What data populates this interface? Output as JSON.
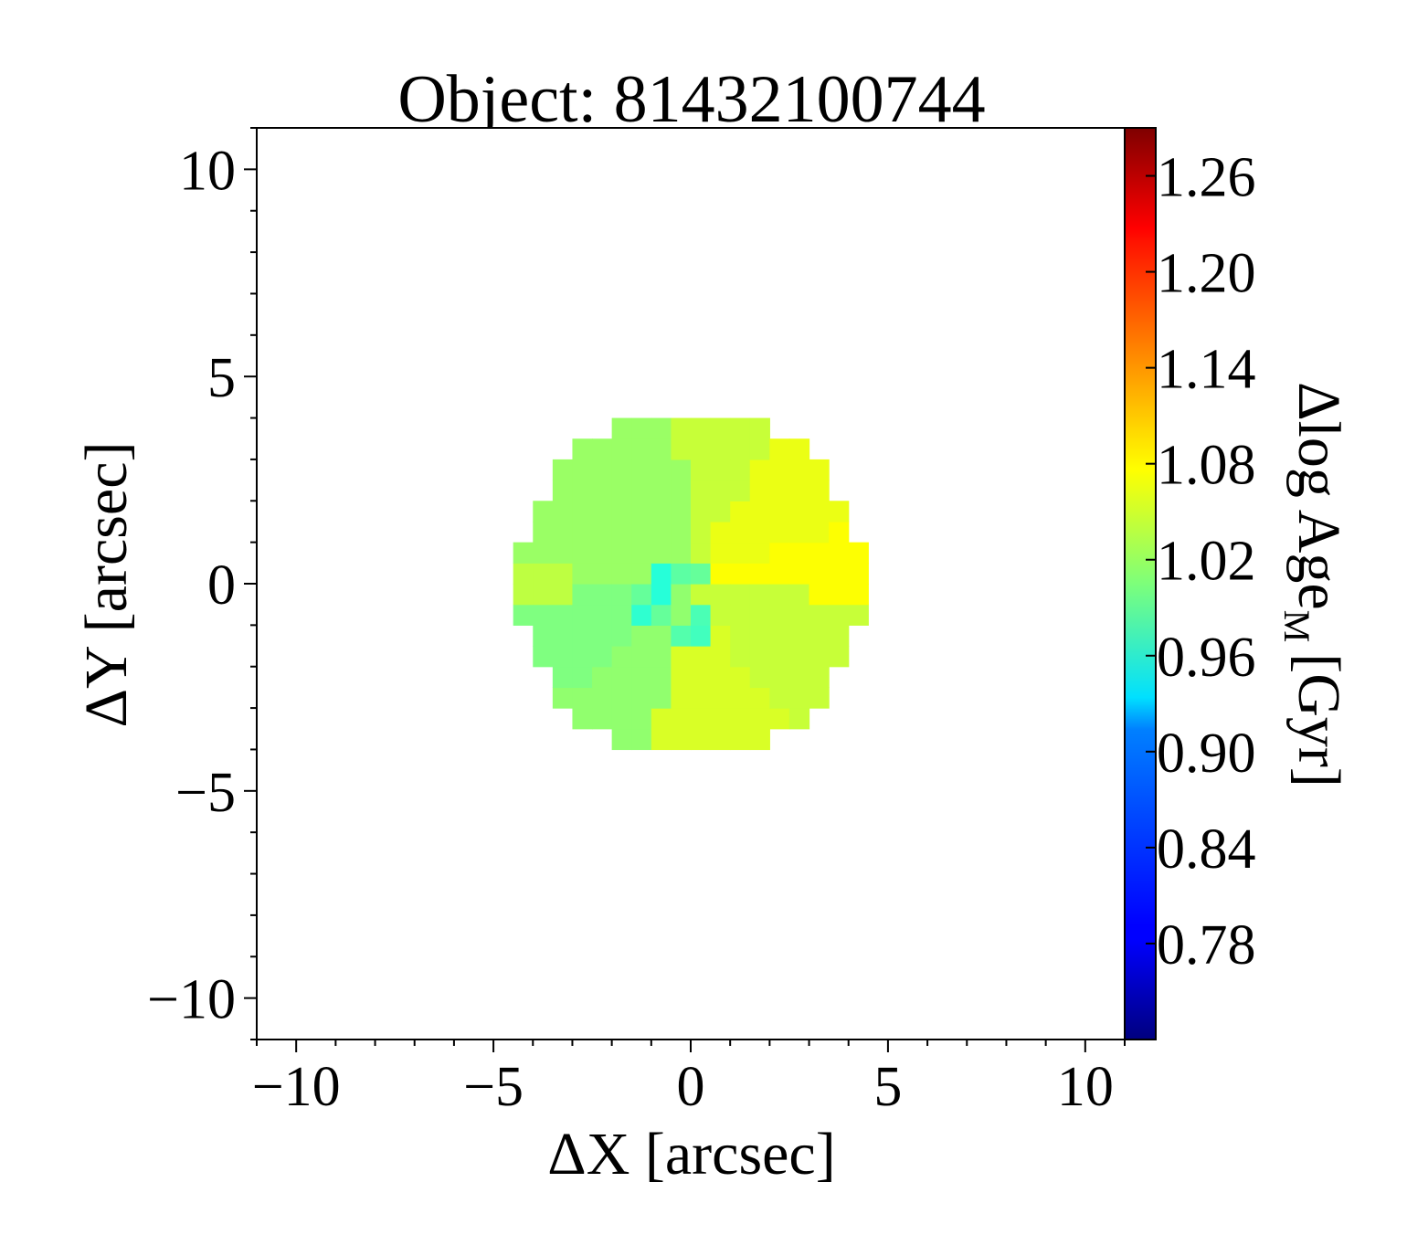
{
  "chart_data": {
    "type": "heatmap",
    "title": "Object: 81432100744",
    "xlabel": "ΔX [arcsec]",
    "ylabel": "ΔY [arcsec]",
    "colorbar_label_main": "Δlog Age",
    "colorbar_label_sub": "M",
    "colorbar_label_unit": "[Gyr]",
    "xlim": [
      -11,
      11
    ],
    "ylim": [
      -11,
      11
    ],
    "x_ticks": [
      -10,
      -5,
      0,
      5,
      10
    ],
    "y_ticks": [
      -10,
      -5,
      0,
      5,
      10
    ],
    "x_tick_labels": [
      "−10",
      "−5",
      "0",
      "5",
      "10"
    ],
    "y_tick_labels": [
      "−10",
      "−5",
      "0",
      "5",
      "10"
    ],
    "colorbar": {
      "colormap": "jet",
      "vmin": 0.72,
      "vmax": 1.29,
      "ticks": [
        1.26,
        1.2,
        1.14,
        1.08,
        1.02,
        0.96,
        0.9,
        0.84,
        0.78
      ],
      "tick_labels": [
        "1.26",
        "1.20",
        "1.14",
        "1.08",
        "1.02",
        "0.96",
        "0.90",
        "0.84",
        "0.78"
      ]
    },
    "map": {
      "center": [
        0.0,
        0.0
      ],
      "radius_arcsec": 4.25,
      "pixel_size_arcsec": 0.5,
      "sectors": [
        {
          "from_deg": 20,
          "to_deg": 60,
          "value": 1.065
        },
        {
          "from_deg": -5,
          "to_deg": 20,
          "value": 1.075
        },
        {
          "from_deg": -55,
          "to_deg": -5,
          "value": 1.045
        },
        {
          "from_deg": -105,
          "to_deg": -55,
          "value": 1.055
        },
        {
          "from_deg": -140,
          "to_deg": -105,
          "value": 1.015
        },
        {
          "from_deg": -175,
          "to_deg": -140,
          "value": 1.005
        },
        {
          "from_deg": 175,
          "to_deg": 185,
          "value": 1.04
        },
        {
          "from_deg": 95,
          "to_deg": 175,
          "value": 1.02
        },
        {
          "from_deg": 60,
          "to_deg": 95,
          "value": 1.045
        }
      ],
      "core": [
        {
          "x": -0.5,
          "y": 0.5,
          "value": 0.955
        },
        {
          "x": -0.5,
          "y": 0.0,
          "value": 0.955
        },
        {
          "x": 0.0,
          "y": 0.5,
          "value": 0.985
        },
        {
          "x": -1.0,
          "y": -0.5,
          "value": 0.96
        },
        {
          "x": 0.5,
          "y": -0.5,
          "value": 0.975
        },
        {
          "x": 0.0,
          "y": -1.0,
          "value": 0.98
        },
        {
          "x": -1.0,
          "y": 0.0,
          "value": 0.99
        },
        {
          "x": 0.5,
          "y": 0.5,
          "value": 0.99
        },
        {
          "x": 0.5,
          "y": -1.0,
          "value": 0.97
        },
        {
          "x": -0.5,
          "y": -0.5,
          "value": 0.99
        }
      ]
    }
  }
}
